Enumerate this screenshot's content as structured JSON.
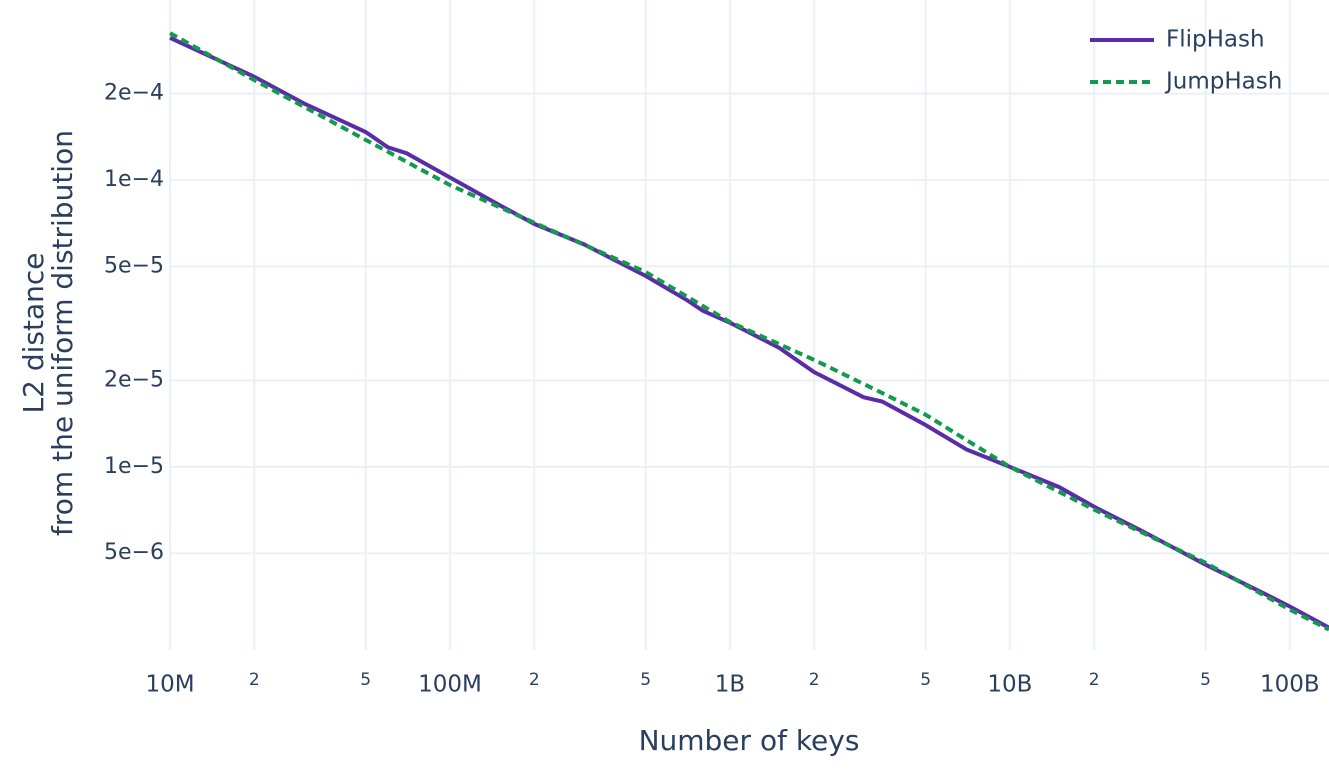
{
  "chart_data": {
    "type": "line",
    "x_label": "Number of keys",
    "y_label": [
      "L2 distance",
      "from the uniform distribution"
    ],
    "log_x": true,
    "log_y": true,
    "grid": true,
    "legend": "top-right",
    "xlim": [
      10000000,
      138000000000
    ],
    "ylim": [
      2.3e-06,
      0.000424
    ],
    "xticks": [
      {
        "value": 10000000,
        "label": "10M"
      },
      {
        "value": 20000000,
        "label": "2"
      },
      {
        "value": 50000000,
        "label": "5"
      },
      {
        "value": 100000000,
        "label": "100M"
      },
      {
        "value": 200000000,
        "label": "2"
      },
      {
        "value": 500000000,
        "label": "5"
      },
      {
        "value": 1000000000,
        "label": "1B"
      },
      {
        "value": 2000000000,
        "label": "2"
      },
      {
        "value": 5000000000,
        "label": "5"
      },
      {
        "value": 10000000000,
        "label": "10B"
      },
      {
        "value": 20000000000,
        "label": "2"
      },
      {
        "value": 50000000000,
        "label": "5"
      },
      {
        "value": 100000000000,
        "label": "100B"
      }
    ],
    "yticks": [
      {
        "value": 5e-06,
        "label": "5e−6"
      },
      {
        "value": 1e-05,
        "label": "1e−5"
      },
      {
        "value": 2e-05,
        "label": "2e−5"
      },
      {
        "value": 5e-05,
        "label": "5e−5"
      },
      {
        "value": 0.0001,
        "label": "1e−4"
      },
      {
        "value": 0.0002,
        "label": "2e−4"
      }
    ],
    "series": [
      {
        "name": "FlipHash",
        "color": "#5b2ca8",
        "dash": false,
        "x": [
          10000000,
          20000000,
          30000000,
          50000000,
          60000000,
          70000000,
          100000000,
          150000000,
          200000000,
          300000000,
          500000000,
          700000000,
          800000000,
          1000000000,
          1500000000,
          2000000000,
          3000000000,
          3500000000,
          5000000000,
          7000000000,
          10000000000,
          15000000000,
          20000000000,
          30000000000,
          50000000000,
          70000000000,
          80000000000,
          100000000000,
          138000000000
        ],
        "values": [
          0.000313,
          0.000229,
          0.000185,
          0.000147,
          0.00013,
          0.000124,
          0.000102,
          8.18e-05,
          7.03e-05,
          5.98e-05,
          4.63e-05,
          3.82e-05,
          3.5e-05,
          3.18e-05,
          2.6e-05,
          2.14e-05,
          1.75e-05,
          1.69e-05,
          1.4e-05,
          1.15e-05,
          1e-05,
          8.5e-06,
          7.26e-06,
          5.94e-06,
          4.56e-06,
          3.88e-06,
          3.64e-06,
          3.26e-06,
          2.75e-06
        ]
      },
      {
        "name": "JumpHash",
        "color": "#139a4f",
        "dash": true,
        "x": [
          10000000,
          20000000,
          50000000,
          100000000,
          200000000,
          500000000,
          1000000000,
          2000000000,
          3500000000,
          5000000000,
          10000000000,
          20000000000,
          50000000000,
          100000000000,
          138000000000
        ],
        "values": [
          0.000325,
          0.000223,
          0.000138,
          9.6e-05,
          7.1e-05,
          4.78e-05,
          3.2e-05,
          2.36e-05,
          1.81e-05,
          1.52e-05,
          1e-05,
          7.09e-06,
          4.63e-06,
          3.18e-06,
          2.71e-06
        ]
      }
    ]
  }
}
